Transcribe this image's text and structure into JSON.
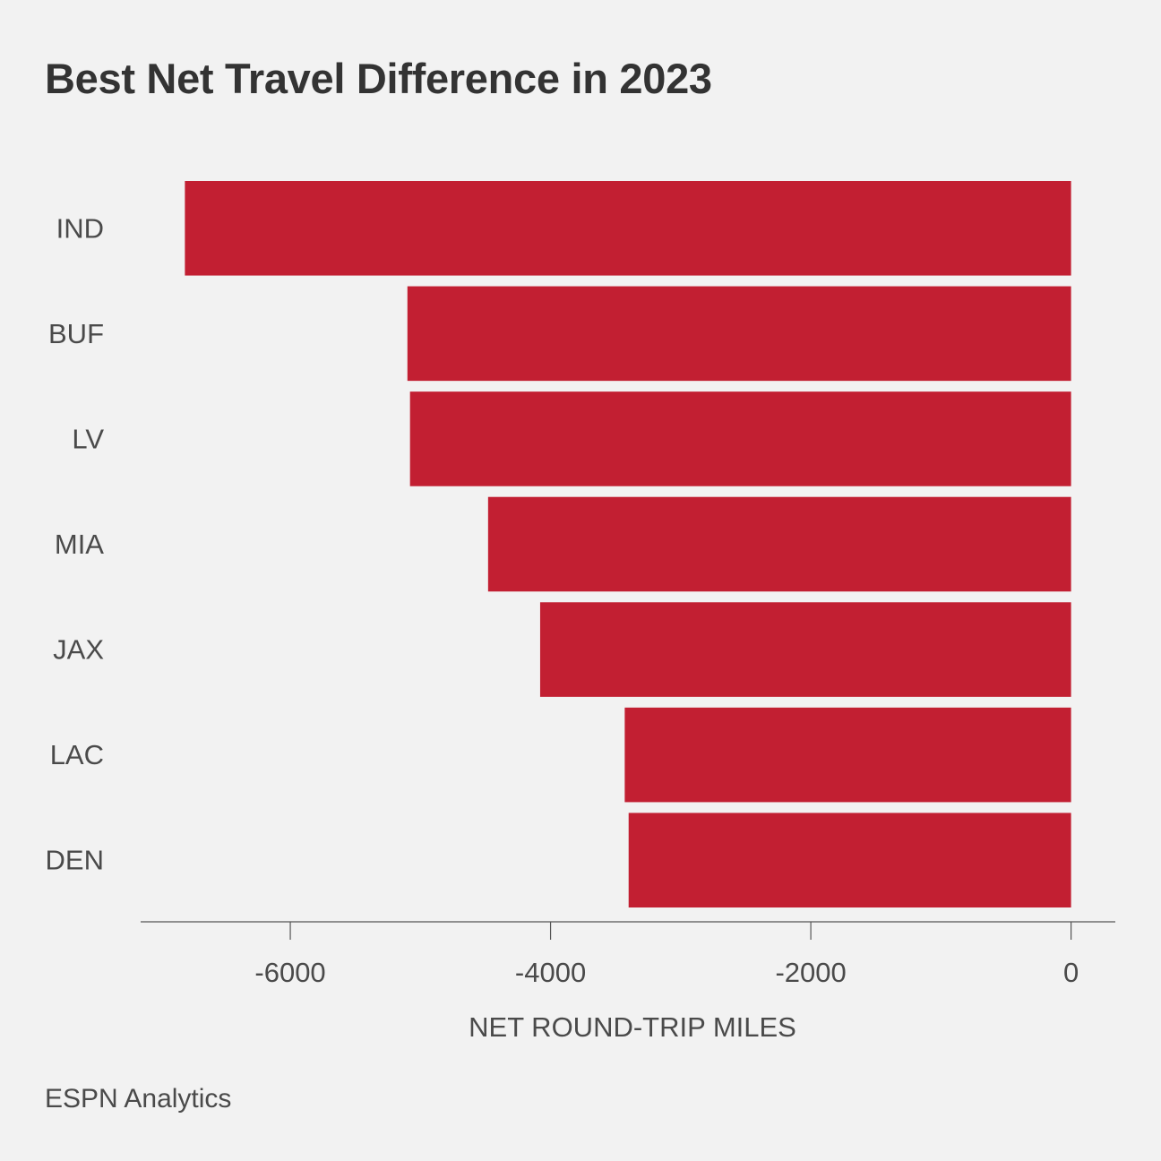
{
  "chart_data": {
    "type": "bar",
    "orientation": "horizontal",
    "title": "Best Net Travel Difference in 2023",
    "xlabel": "NET ROUND-TRIP MILES",
    "ylabel": "",
    "categories": [
      "IND",
      "BUF",
      "LV",
      "MIA",
      "JAX",
      "LAC",
      "DEN"
    ],
    "values": [
      -6810,
      -5100,
      -5080,
      -4480,
      -4080,
      -3430,
      -3400
    ],
    "xlim": [
      -7150,
      340
    ],
    "xticks": [
      -6000,
      -4000,
      -2000,
      0
    ],
    "xtick_labels": [
      "-6000",
      "-4000",
      "-2000",
      "0"
    ],
    "grid": false,
    "legend": "none",
    "bar_color": "#c21f32"
  },
  "source": "ESPN Analytics"
}
